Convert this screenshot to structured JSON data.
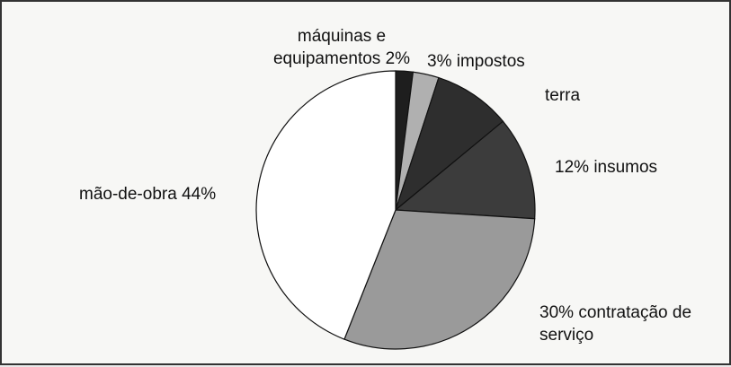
{
  "chart_data": {
    "type": "pie",
    "categories": [
      "máquinas e equipamentos",
      "impostos",
      "terra",
      "insumos",
      "contratação de serviço",
      "mão-de-obra"
    ],
    "values": [
      2,
      3,
      9,
      12,
      30,
      44
    ],
    "value_labels": [
      "2%",
      "3%",
      null,
      "12%",
      "30%",
      "44%"
    ],
    "colors": [
      "#1e1e1e",
      "#b0b0b0",
      "#2e2e2e",
      "#3c3c3c",
      "#9a9a9a",
      "#ffffff"
    ]
  }
}
